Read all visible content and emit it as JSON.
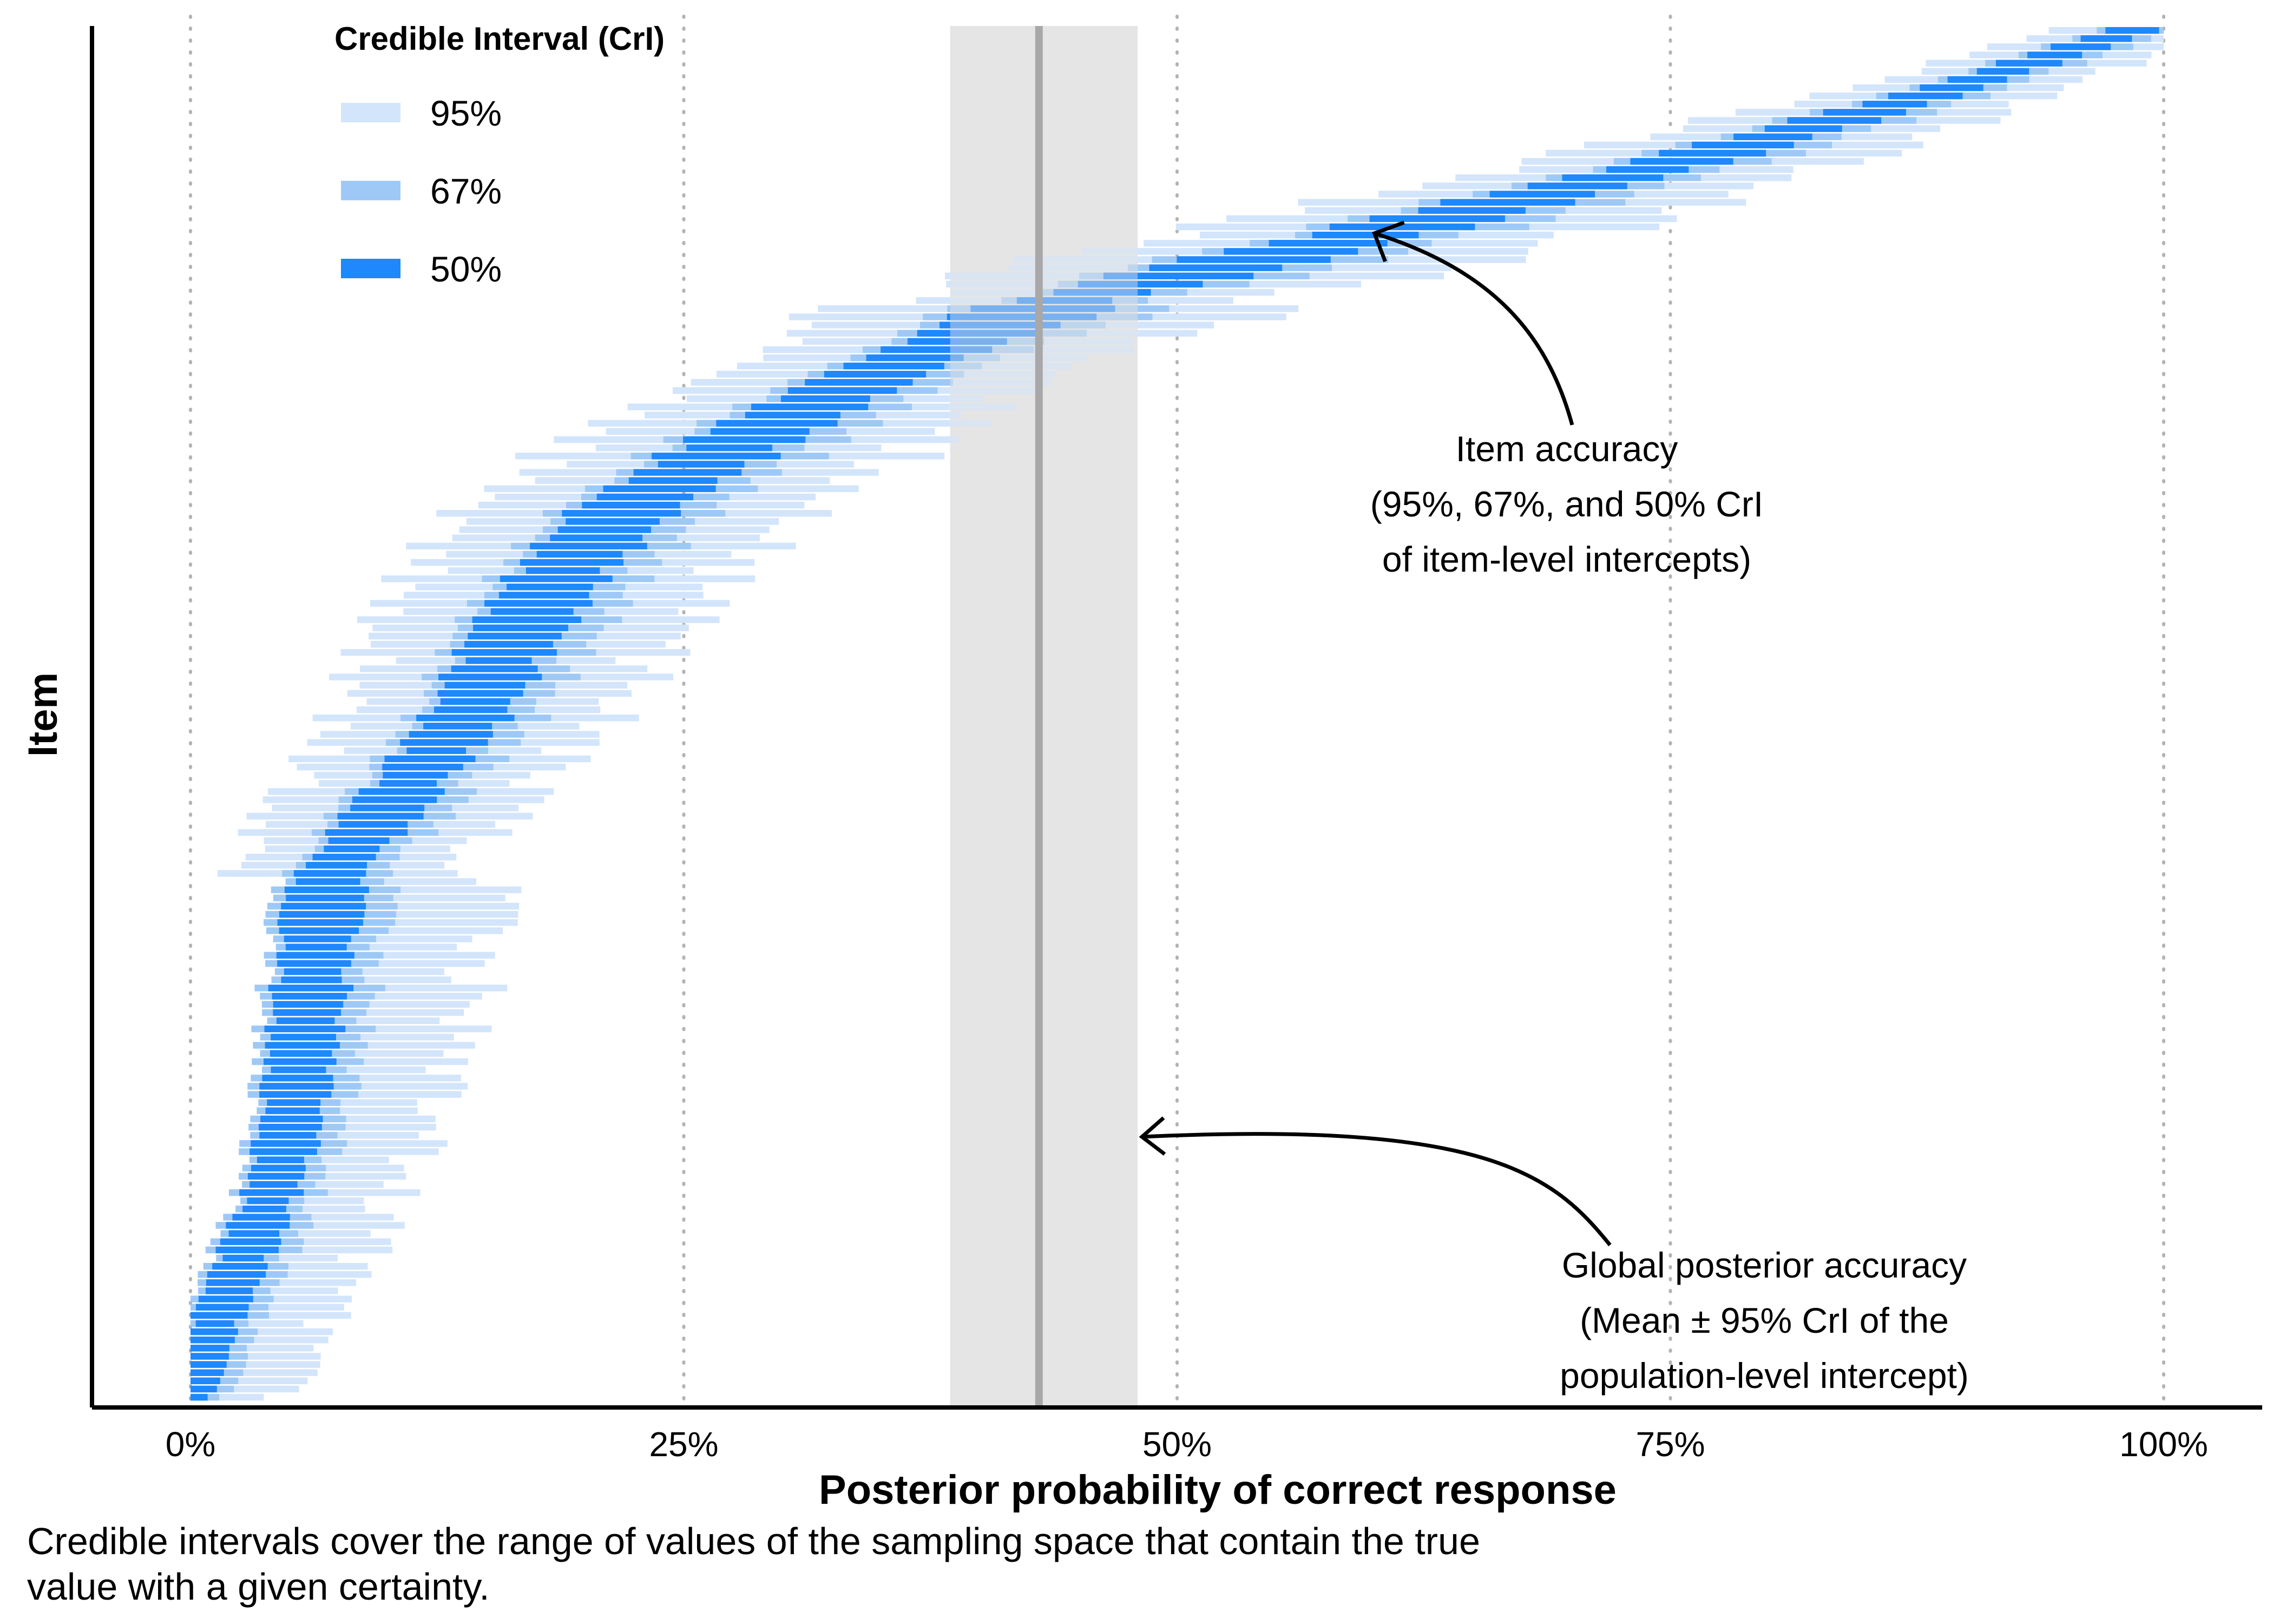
{
  "chart_data": {
    "type": "interval",
    "xlabel": "Posterior probability of correct response",
    "ylabel": "Item",
    "xlim": [
      -0.05,
      1.05
    ],
    "xticks": [
      {
        "value": 0,
        "label": "0%"
      },
      {
        "value": 0.25,
        "label": "25%"
      },
      {
        "value": 0.5,
        "label": "50%"
      },
      {
        "value": 0.75,
        "label": "75%"
      },
      {
        "value": 1,
        "label": "100%"
      }
    ],
    "grid": "vertical dotted at x ticks",
    "legend": {
      "title": "Credible Interval (CrI)",
      "placement": "top-left",
      "entries": [
        {
          "label": "95%",
          "color": "#d3e5fb"
        },
        {
          "label": "67%",
          "color": "#9ec9f6"
        },
        {
          "label": "50%",
          "color": "#1e88fc"
        }
      ]
    },
    "global_estimate": {
      "mean": 0.43,
      "lower": 0.385,
      "upper": 0.48,
      "line_color": "#a8a8a8",
      "band_color": "#e5e5e5"
    },
    "item_curve": [
      {
        "rank": 0.0,
        "median": 0.0
      },
      {
        "rank": 0.02,
        "median": 0.003
      },
      {
        "rank": 0.05,
        "median": 0.01
      },
      {
        "rank": 0.1,
        "median": 0.025
      },
      {
        "rank": 0.15,
        "median": 0.04
      },
      {
        "rank": 0.2,
        "median": 0.05
      },
      {
        "rank": 0.3,
        "median": 0.06
      },
      {
        "rank": 0.35,
        "median": 0.065
      },
      {
        "rank": 0.385,
        "median": 0.07
      },
      {
        "rank": 0.4,
        "median": 0.08
      },
      {
        "rank": 0.45,
        "median": 0.11
      },
      {
        "rank": 0.5,
        "median": 0.14
      },
      {
        "rank": 0.55,
        "median": 0.16
      },
      {
        "rank": 0.6,
        "median": 0.185
      },
      {
        "rank": 0.65,
        "median": 0.22
      },
      {
        "rank": 0.7,
        "median": 0.28
      },
      {
        "rank": 0.75,
        "median": 0.35
      },
      {
        "rank": 0.8,
        "median": 0.44
      },
      {
        "rank": 0.85,
        "median": 0.6
      },
      {
        "rank": 0.9,
        "median": 0.75
      },
      {
        "rank": 0.95,
        "median": 0.88
      },
      {
        "rank": 1.0,
        "median": 0.99
      }
    ],
    "annotations": [
      {
        "name": "item-accuracy",
        "lines": [
          "Item accuracy",
          "(95%, 67%, and 50% CrI",
          "of item-level intercepts)"
        ],
        "points_to": {
          "x": 0.6,
          "rank": 0.85
        }
      },
      {
        "name": "global-accuracy",
        "lines": [
          "Global posterior accuracy",
          "(Mean ± 95% CrI of the",
          "population-level intercept)"
        ],
        "points_to": {
          "x": 0.48,
          "rank": 0.19
        }
      }
    ]
  },
  "caption": "Credible intervals cover the range of values of the sampling space that contain the true value with a given certainty."
}
